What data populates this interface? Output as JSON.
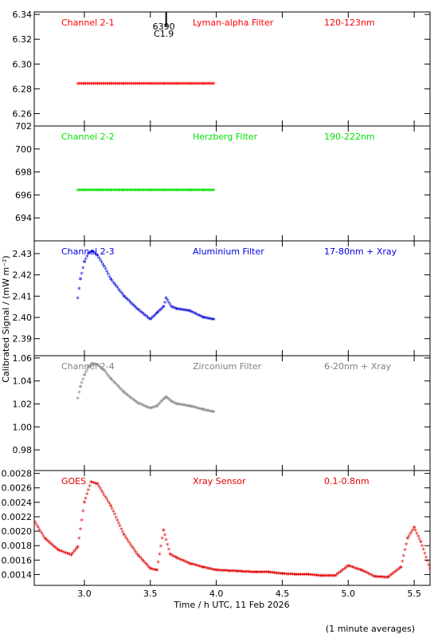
{
  "x_axis": {
    "label": "Time / h UTC, 11 Feb 2026",
    "range": [
      2.62,
      5.62
    ],
    "ticks": [
      "3.0",
      "3.5",
      "4.0",
      "4.5",
      "5.0",
      "5.5"
    ]
  },
  "y_axis_label": "Calibrated Signal / (mW m⁻²)",
  "footer_note": "(1 minute averages)",
  "chart_data": [
    {
      "type": "scatter",
      "channel": "Channel 2-1",
      "filter": "Lyman-alpha Filter",
      "band": "120-123nm",
      "color": "#ff0000",
      "ylim": [
        6.25,
        6.342
      ],
      "yticks": [
        "6.26",
        "6.28",
        "6.30",
        "6.32",
        "6.34"
      ],
      "annotation": {
        "x": 3.62,
        "line1": "6390",
        "line2": "C1.9"
      },
      "series": [
        {
          "x": [
            2.95,
            3.0,
            3.1,
            3.2,
            3.3,
            3.4,
            3.5,
            3.6,
            3.7,
            3.8,
            3.9,
            3.98
          ],
          "y": [
            6.284,
            6.284,
            6.284,
            6.284,
            6.284,
            6.284,
            6.284,
            6.284,
            6.284,
            6.284,
            6.284,
            6.284
          ]
        }
      ]
    },
    {
      "type": "scatter",
      "channel": "Channel 2-2",
      "filter": "Herzberg Filter",
      "band": "190-222nm",
      "color": "#00e000",
      "ylim": [
        692.0,
        702.0
      ],
      "yticks": [
        "694",
        "696",
        "698",
        "700",
        "702"
      ],
      "series": [
        {
          "x": [
            2.95,
            3.0,
            3.1,
            3.2,
            3.3,
            3.4,
            3.5,
            3.6,
            3.7,
            3.8,
            3.9,
            3.98
          ],
          "y": [
            696.4,
            696.4,
            696.4,
            696.4,
            696.4,
            696.4,
            696.4,
            696.4,
            696.4,
            696.4,
            696.4,
            696.4
          ]
        }
      ]
    },
    {
      "type": "scatter",
      "channel": "Channel 2-3",
      "filter": "Aluminium Filter",
      "band": "17-80nm + Xray",
      "color": "#0000dd",
      "ylim": [
        2.382,
        2.436
      ],
      "yticks": [
        "2.39",
        "2.40",
        "2.41",
        "2.42",
        "2.43"
      ],
      "series": [
        {
          "x": [
            2.95,
            2.97,
            3.0,
            3.03,
            3.06,
            3.1,
            3.15,
            3.2,
            3.3,
            3.4,
            3.5,
            3.55,
            3.6,
            3.62,
            3.66,
            3.7,
            3.8,
            3.9,
            3.98
          ],
          "y": [
            2.409,
            2.418,
            2.426,
            2.43,
            2.431,
            2.429,
            2.424,
            2.418,
            2.41,
            2.404,
            2.399,
            2.402,
            2.405,
            2.409,
            2.405,
            2.404,
            2.403,
            2.4,
            2.399
          ]
        }
      ]
    },
    {
      "type": "scatter",
      "channel": "Channel 2-4",
      "filter": "Zirconium Filter",
      "band": "6-20nm + Xray",
      "color": "#808080",
      "ylim": [
        0.962,
        1.062
      ],
      "yticks": [
        "0.98",
        "1.00",
        "1.02",
        "1.04",
        "1.06"
      ],
      "series": [
        {
          "x": [
            2.95,
            2.97,
            3.0,
            3.03,
            3.06,
            3.1,
            3.15,
            3.2,
            3.3,
            3.4,
            3.5,
            3.55,
            3.6,
            3.62,
            3.66,
            3.7,
            3.8,
            3.9,
            3.98
          ],
          "y": [
            1.025,
            1.035,
            1.045,
            1.052,
            1.055,
            1.054,
            1.049,
            1.042,
            1.03,
            1.021,
            1.016,
            1.018,
            1.024,
            1.026,
            1.022,
            1.02,
            1.018,
            1.015,
            1.013
          ]
        }
      ]
    },
    {
      "type": "scatter",
      "channel": "GOES",
      "filter": "Xray Sensor",
      "band": "0.1-0.8nm",
      "color": "#e00000",
      "ylim": [
        0.00125,
        0.00284
      ],
      "yticks": [
        "0.0014",
        "0.0016",
        "0.0018",
        "0.0020",
        "0.0022",
        "0.0024",
        "0.0026",
        "0.0028"
      ],
      "series": [
        {
          "x": [
            2.62,
            2.7,
            2.8,
            2.9,
            2.95,
            3.0,
            3.05,
            3.1,
            3.2,
            3.3,
            3.4,
            3.5,
            3.55,
            3.6,
            3.65,
            3.7,
            3.8,
            3.9,
            4.0,
            4.1,
            4.2,
            4.3,
            4.4,
            4.5,
            4.6,
            4.7,
            4.8,
            4.9,
            5.0,
            5.1,
            5.2,
            5.3,
            5.4,
            5.45,
            5.5,
            5.55,
            5.62
          ],
          "y": [
            0.00214,
            0.0019,
            0.00174,
            0.00167,
            0.00178,
            0.0024,
            0.00268,
            0.00265,
            0.00235,
            0.00195,
            0.00168,
            0.00148,
            0.00146,
            0.00201,
            0.00168,
            0.00163,
            0.00155,
            0.0015,
            0.00146,
            0.00145,
            0.00144,
            0.00143,
            0.00143,
            0.00141,
            0.0014,
            0.0014,
            0.00138,
            0.00138,
            0.00152,
            0.00146,
            0.00137,
            0.00136,
            0.0015,
            0.0019,
            0.00205,
            0.00185,
            0.00148
          ]
        }
      ]
    }
  ]
}
